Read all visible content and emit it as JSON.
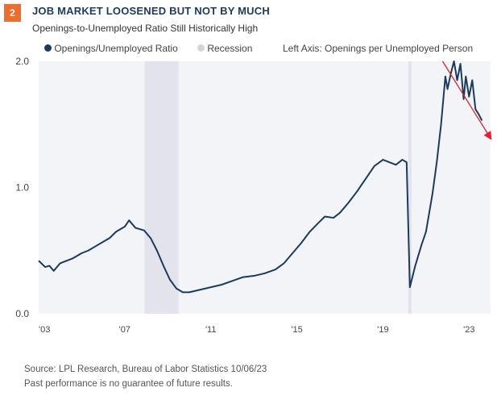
{
  "badge": "2",
  "title": "JOB MARKET LOOSENED BUT NOT BY MUCH",
  "subtitle": "Openings-to-Unemployed Ratio Still Historically High",
  "legend": {
    "series": "Openings/Unemployed Ratio",
    "recession": "Recession",
    "axis_note": "Left Axis: Openings per Unemployed Person"
  },
  "footer": {
    "source": "Source: LPL Research, Bureau of Labor Statistics  10/06/23",
    "disclaimer": "Past performance is no guarantee of future results."
  },
  "colors": {
    "series": "#1b3a5e",
    "recession": "#e3e3eb",
    "plot_bg": "#f3f4f7",
    "arrow": "#e8202a",
    "badge": "#ec6d2c"
  },
  "chart_data": {
    "type": "line",
    "xlim": [
      2003,
      2024
    ],
    "ylim": [
      0,
      2.0
    ],
    "yticks": [
      {
        "v": 0,
        "label": "0.0"
      },
      {
        "v": 1,
        "label": "1.0"
      },
      {
        "v": 2,
        "label": "2.0"
      }
    ],
    "xticks": [
      {
        "v": 2003,
        "label": "'03"
      },
      {
        "v": 2007,
        "label": "'07"
      },
      {
        "v": 2011,
        "label": "'11"
      },
      {
        "v": 2015,
        "label": "'15"
      },
      {
        "v": 2019,
        "label": "'19"
      },
      {
        "v": 2023,
        "label": "'23"
      }
    ],
    "recessions": [
      [
        2007.92,
        2009.5
      ],
      [
        2020.17,
        2020.33
      ]
    ],
    "series": [
      {
        "name": "Openings/Unemployed Ratio",
        "points": [
          [
            2003,
            0.42
          ],
          [
            2003.3,
            0.37
          ],
          [
            2003.5,
            0.38
          ],
          [
            2003.7,
            0.34
          ],
          [
            2004,
            0.4
          ],
          [
            2004.3,
            0.42
          ],
          [
            2004.6,
            0.44
          ],
          [
            2005,
            0.48
          ],
          [
            2005.3,
            0.5
          ],
          [
            2005.6,
            0.53
          ],
          [
            2006,
            0.57
          ],
          [
            2006.3,
            0.6
          ],
          [
            2006.6,
            0.65
          ],
          [
            2007,
            0.69
          ],
          [
            2007.2,
            0.74
          ],
          [
            2007.5,
            0.68
          ],
          [
            2007.9,
            0.66
          ],
          [
            2008.2,
            0.6
          ],
          [
            2008.5,
            0.5
          ],
          [
            2008.8,
            0.38
          ],
          [
            2009.1,
            0.27
          ],
          [
            2009.4,
            0.2
          ],
          [
            2009.7,
            0.17
          ],
          [
            2010,
            0.17
          ],
          [
            2010.5,
            0.19
          ],
          [
            2011,
            0.21
          ],
          [
            2011.5,
            0.23
          ],
          [
            2012,
            0.26
          ],
          [
            2012.5,
            0.29
          ],
          [
            2013,
            0.3
          ],
          [
            2013.5,
            0.32
          ],
          [
            2014,
            0.35
          ],
          [
            2014.4,
            0.4
          ],
          [
            2014.8,
            0.48
          ],
          [
            2015.2,
            0.56
          ],
          [
            2015.6,
            0.65
          ],
          [
            2016,
            0.72
          ],
          [
            2016.3,
            0.77
          ],
          [
            2016.7,
            0.76
          ],
          [
            2017,
            0.8
          ],
          [
            2017.4,
            0.88
          ],
          [
            2017.8,
            0.97
          ],
          [
            2018.2,
            1.07
          ],
          [
            2018.6,
            1.17
          ],
          [
            2019,
            1.22
          ],
          [
            2019.3,
            1.2
          ],
          [
            2019.6,
            1.18
          ],
          [
            2019.9,
            1.22
          ],
          [
            2020.1,
            1.2
          ],
          [
            2020.25,
            0.21
          ],
          [
            2020.5,
            0.38
          ],
          [
            2020.8,
            0.55
          ],
          [
            2021,
            0.65
          ],
          [
            2021.3,
            0.95
          ],
          [
            2021.5,
            1.2
          ],
          [
            2021.7,
            1.5
          ],
          [
            2021.9,
            1.88
          ],
          [
            2022.0,
            1.78
          ],
          [
            2022.15,
            1.9
          ],
          [
            2022.3,
            2.0
          ],
          [
            2022.45,
            1.85
          ],
          [
            2022.6,
            1.98
          ],
          [
            2022.75,
            1.7
          ],
          [
            2022.85,
            1.88
          ],
          [
            2023.0,
            1.72
          ],
          [
            2023.15,
            1.85
          ],
          [
            2023.3,
            1.62
          ],
          [
            2023.45,
            1.58
          ],
          [
            2023.6,
            1.53
          ]
        ]
      }
    ],
    "arrow": [
      [
        2021.77,
        2.0
      ],
      [
        2024.0,
        1.39
      ]
    ]
  }
}
